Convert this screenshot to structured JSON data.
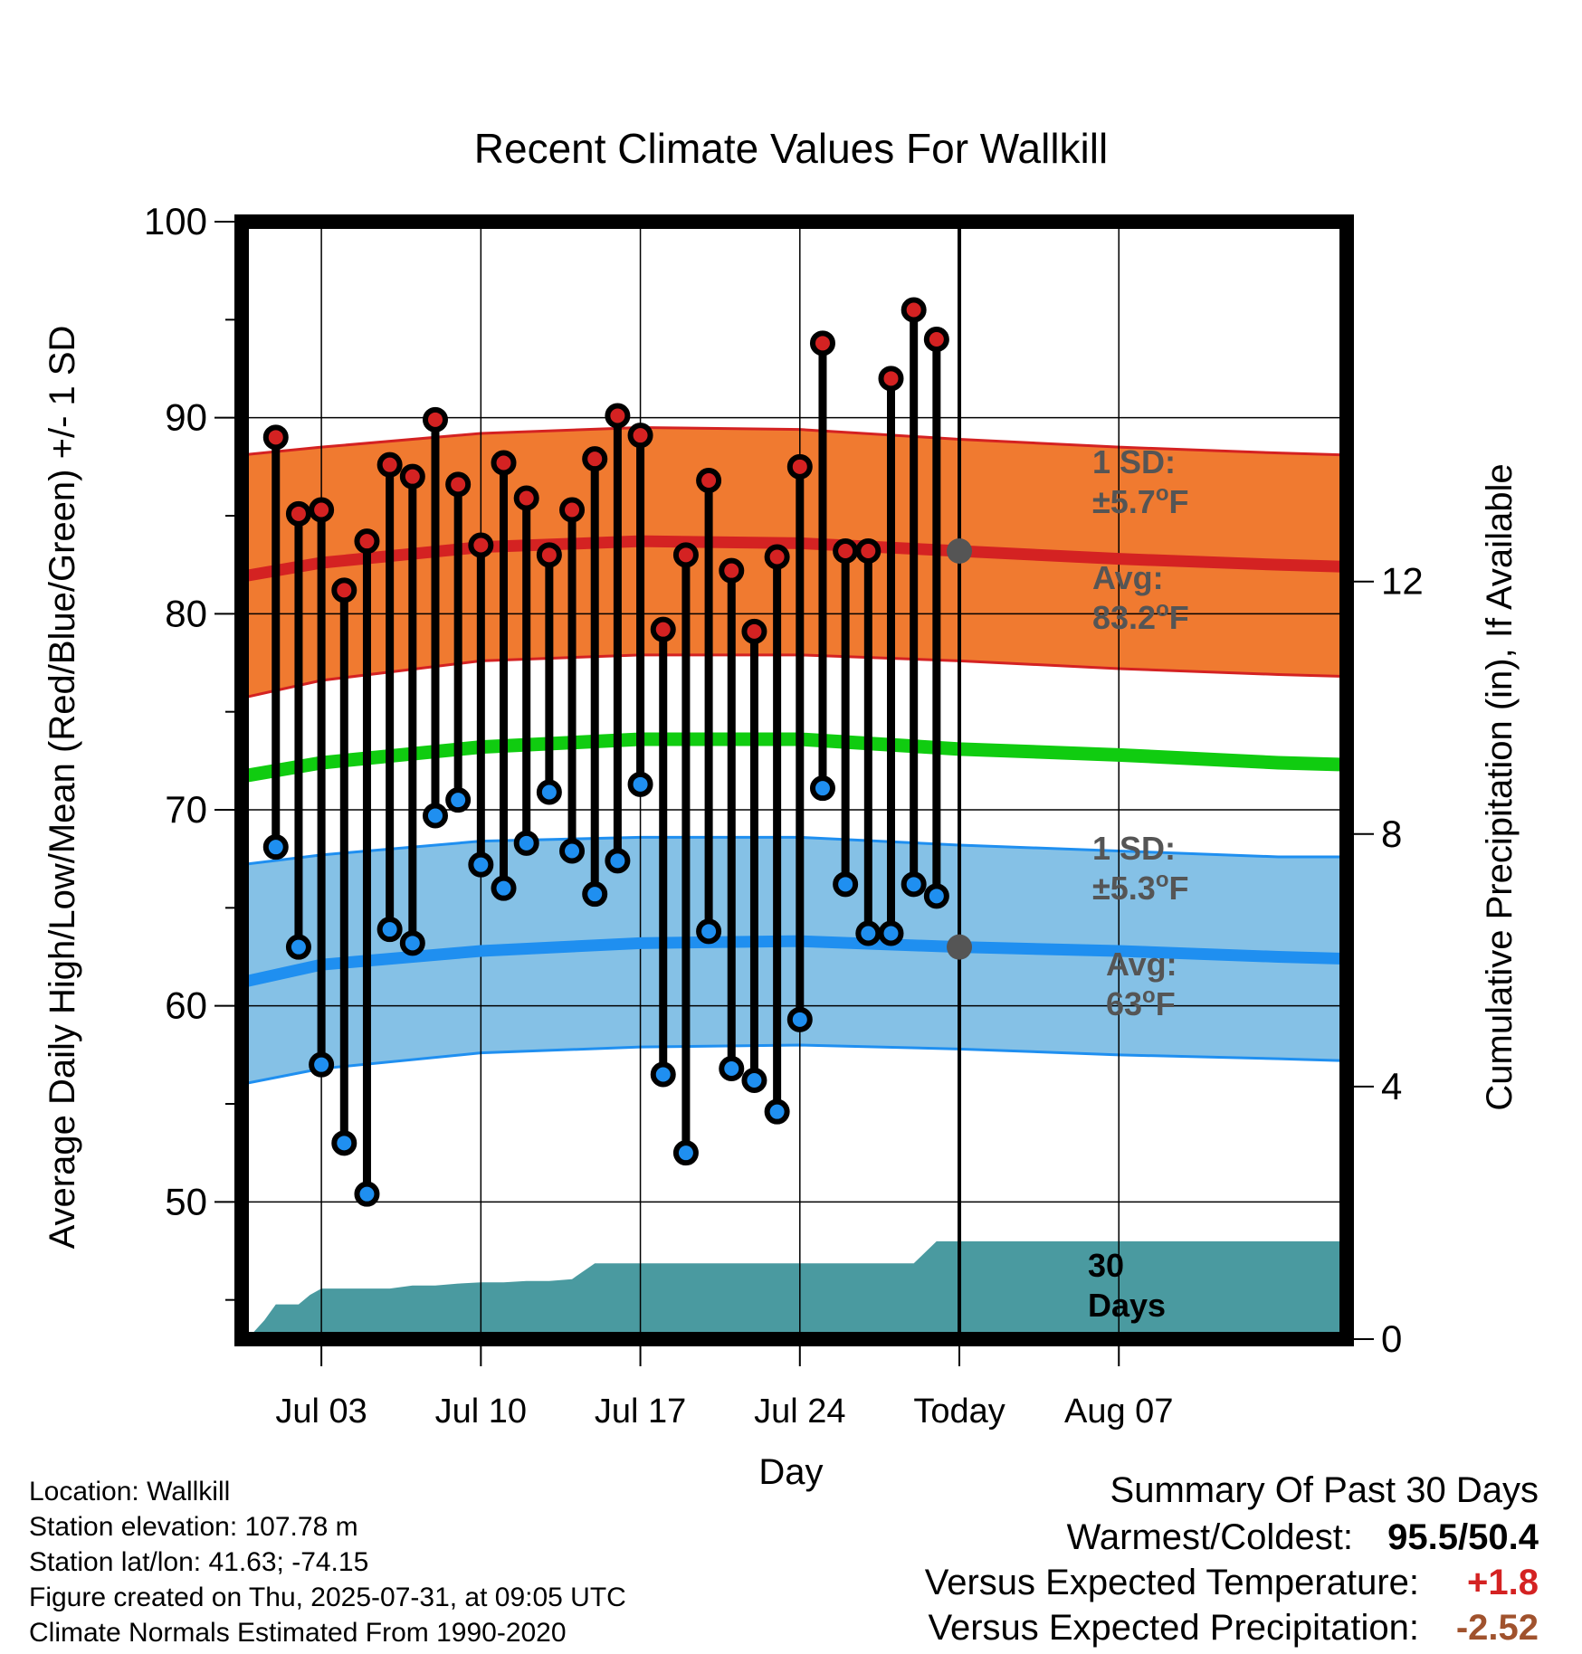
{
  "chart_data": {
    "type": "line",
    "title": "Recent Climate Values For Wallkill",
    "xlabel": "Day",
    "ylabel_left": "Average Daily High/Low/Mean (Red/Blue/Green) +/- 1 SD",
    "ylabel_right": "Cumulative Precipitation (in), If Available",
    "ylim_left": [
      43,
      100
    ],
    "ylim_right": [
      0,
      17.7
    ],
    "xlim": [
      -3.5,
      45
    ],
    "grid": true,
    "y_ticks_left": [
      50,
      60,
      70,
      80,
      90,
      100
    ],
    "y_ticks_right": [
      0,
      4,
      8,
      12
    ],
    "x_ticks": [
      {
        "day": 0,
        "label": "Jul 03"
      },
      {
        "day": 7,
        "label": "Jul 10"
      },
      {
        "day": 14,
        "label": "Jul 17"
      },
      {
        "day": 21,
        "label": "Jul 24"
      },
      {
        "day": 28,
        "label": "Today"
      },
      {
        "day": 35,
        "label": "Aug 07"
      }
    ],
    "today_day": 28,
    "days": [
      -2,
      -1,
      0,
      1,
      2,
      3,
      4,
      5,
      6,
      7,
      8,
      9,
      10,
      11,
      12,
      13,
      14,
      15,
      16,
      17,
      18,
      19,
      20,
      21,
      22,
      23,
      24,
      25,
      26,
      27
    ],
    "highs": [
      89.0,
      85.1,
      85.3,
      81.2,
      83.7,
      87.6,
      87.0,
      89.9,
      86.6,
      83.5,
      87.7,
      85.9,
      83.0,
      85.3,
      87.9,
      90.1,
      89.1,
      79.2,
      83.0,
      86.8,
      82.2,
      79.1,
      82.9,
      87.5,
      93.8,
      83.2,
      83.2,
      92.0,
      95.5,
      94.0
    ],
    "lows": [
      68.1,
      63.0,
      57.0,
      53.0,
      50.4,
      63.9,
      63.2,
      69.7,
      70.5,
      67.2,
      66.0,
      68.3,
      70.9,
      67.9,
      65.7,
      67.4,
      71.3,
      56.5,
      52.5,
      63.8,
      56.8,
      56.2,
      54.6,
      59.3,
      71.1,
      66.2,
      63.7,
      63.7,
      66.2,
      65.6
    ],
    "normals": {
      "days": [
        -3.5,
        0,
        7,
        14,
        21,
        28,
        35,
        42,
        45
      ],
      "high_avg": [
        81.9,
        82.6,
        83.4,
        83.7,
        83.6,
        83.2,
        82.8,
        82.5,
        82.4
      ],
      "high_upper": [
        88.1,
        88.5,
        89.2,
        89.5,
        89.4,
        88.9,
        88.5,
        88.2,
        88.1
      ],
      "high_lower": [
        75.7,
        76.6,
        77.6,
        77.9,
        77.9,
        77.6,
        77.2,
        76.9,
        76.8
      ],
      "mean": [
        71.7,
        72.4,
        73.2,
        73.6,
        73.6,
        73.1,
        72.8,
        72.4,
        72.3
      ],
      "low_avg": [
        61.2,
        62.1,
        62.8,
        63.2,
        63.3,
        63.0,
        62.8,
        62.5,
        62.4
      ],
      "low_upper": [
        67.2,
        67.7,
        68.4,
        68.6,
        68.6,
        68.2,
        67.9,
        67.6,
        67.6
      ],
      "low_lower": [
        56.0,
        56.8,
        57.6,
        57.9,
        58.0,
        57.8,
        57.5,
        57.3,
        57.2
      ]
    },
    "precip_cumulative": {
      "days": [
        -3.5,
        -3,
        -2.5,
        -2,
        -1,
        -0.5,
        0,
        1,
        2,
        3,
        4,
        5,
        6,
        7,
        8,
        9,
        10,
        11,
        12,
        13,
        14,
        15,
        16,
        17,
        18,
        19,
        20,
        21,
        22,
        23,
        24,
        25,
        26,
        27,
        28,
        28.5,
        30,
        35,
        40,
        45
      ],
      "values": [
        0,
        0.1,
        0.3,
        0.55,
        0.55,
        0.7,
        0.8,
        0.8,
        0.8,
        0.8,
        0.85,
        0.85,
        0.88,
        0.9,
        0.9,
        0.92,
        0.92,
        0.95,
        1.2,
        1.2,
        1.2,
        1.2,
        1.2,
        1.2,
        1.2,
        1.2,
        1.2,
        1.2,
        1.2,
        1.2,
        1.2,
        1.2,
        1.2,
        1.55,
        1.55,
        1.55,
        1.55,
        1.55,
        1.55,
        1.55
      ]
    },
    "annotations": [
      {
        "id": "high_sd",
        "text_line1": "1 SD:",
        "text_line2_prefix": "±5.7",
        "text_line2_suffix": "F"
      },
      {
        "id": "high_avg",
        "text_line1": "Avg:",
        "text_line2_prefix": "83.2",
        "text_line2_suffix": "F",
        "value": 83.2
      },
      {
        "id": "low_sd",
        "text_line1": "1 SD:",
        "text_line2_prefix": "±5.3",
        "text_line2_suffix": "F"
      },
      {
        "id": "low_avg",
        "text_line1": "Avg:",
        "text_line2_prefix": "63",
        "text_line2_suffix": "F",
        "value": 63.0
      },
      {
        "id": "days",
        "text_line1": "30",
        "text_line2": "Days"
      }
    ],
    "colors": {
      "high_band": "#f07a30",
      "high_line": "#d42222",
      "low_band": "#85c1e6",
      "low_line": "#1f8ff0",
      "mean_line": "#10cc10",
      "precip": "#4a9aa0",
      "high_dot": "#d42222",
      "low_dot": "#1f8ff0",
      "annotation": "#555555"
    }
  },
  "info": {
    "location": "Location: Wallkill",
    "elevation": "Station elevation: 107.78 m",
    "latlon": "Station lat/lon: 41.63; -74.15",
    "created": "Figure created on Thu, 2025-07-31, at 09:05 UTC",
    "normals": "Climate Normals Estimated From 1990-2020"
  },
  "summary": {
    "title": "Summary Of Past 30 Days",
    "warm_cold_label": "Warmest/Coldest:",
    "warm_cold_value": "95.5/50.4",
    "temp_label": "Versus Expected Temperature:",
    "temp_value": "+1.8",
    "temp_color": "#d42222",
    "precip_label": "Versus Expected Precipitation:",
    "precip_value": "-2.52",
    "precip_color": "#a0522d"
  }
}
